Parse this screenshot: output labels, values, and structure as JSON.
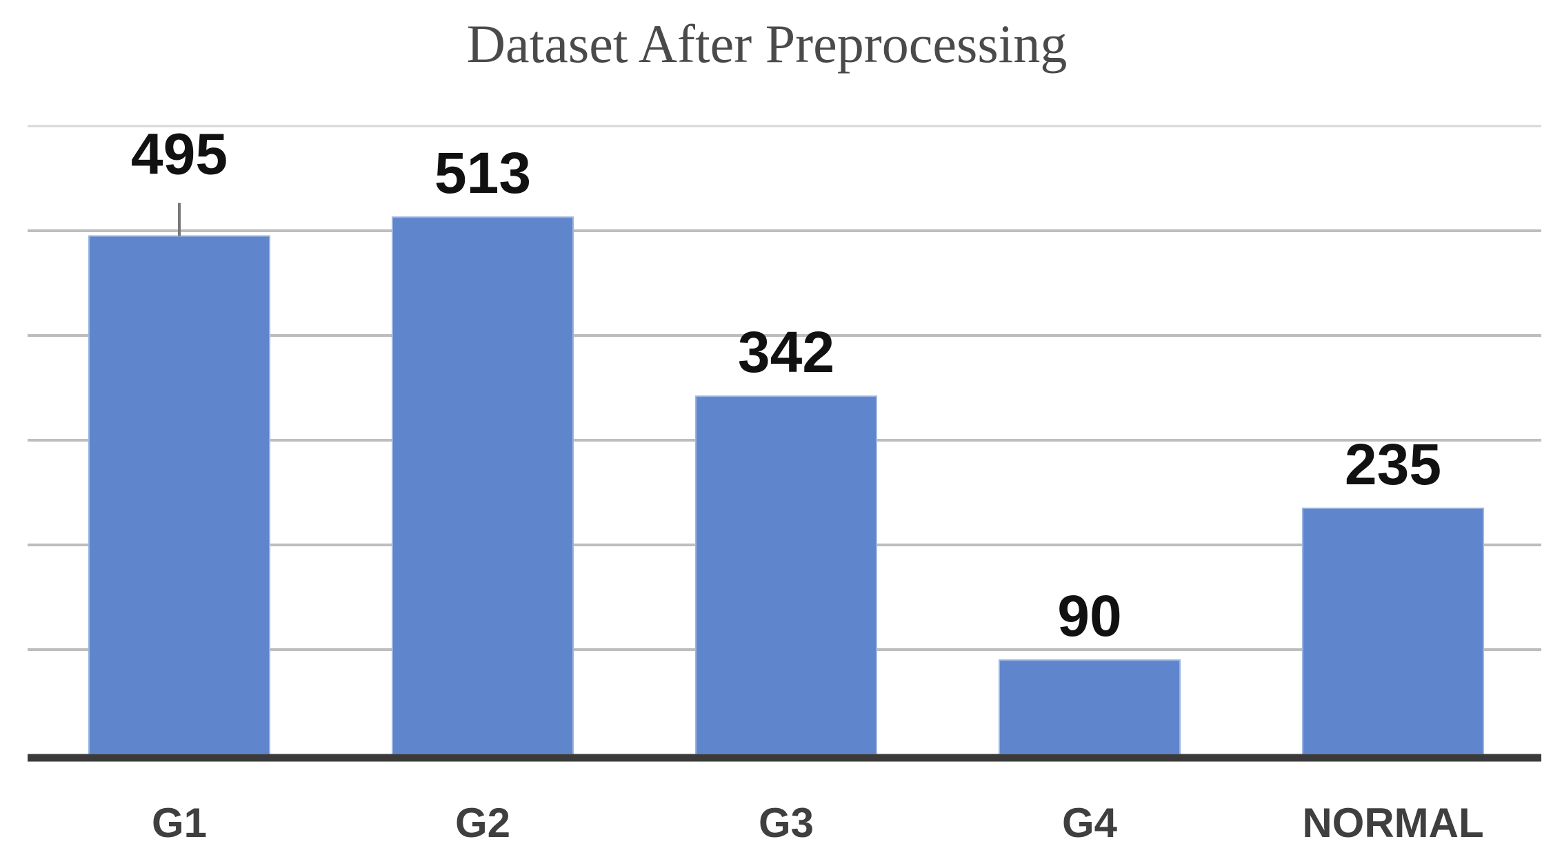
{
  "chart_data": {
    "type": "bar",
    "title": "Dataset After Preprocessing",
    "categories": [
      "G1",
      "G2",
      "G3",
      "G4",
      "NORMAL"
    ],
    "values": [
      495,
      513,
      342,
      90,
      235
    ],
    "data_labels": [
      "495",
      "513",
      "342",
      "90",
      "235"
    ],
    "xlabel": "",
    "ylabel": "",
    "ylim": [
      0,
      600
    ],
    "grid": true,
    "legend": "none"
  },
  "colors": {
    "bar": "#5f86cc",
    "bar_edge": "#9db5e0",
    "grid": "#bdbdbd",
    "axis": "#3a3a3a",
    "title": "#4a4a4a",
    "value_label": "#111111",
    "category_label": "#3f3f3f"
  }
}
